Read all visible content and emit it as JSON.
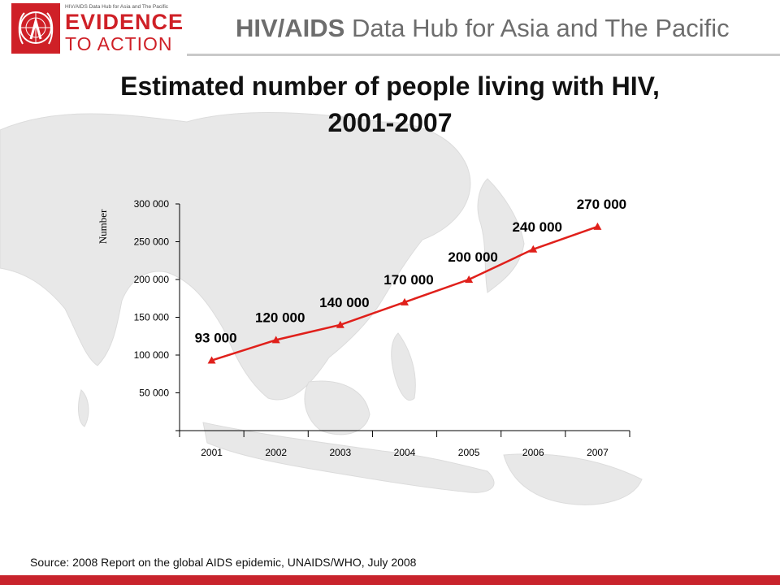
{
  "header": {
    "logo_small": "HIV/AIDS Data Hub for Asia and The Pacific",
    "logo_line1": "EVIDENCE",
    "logo_line2": "TO ACTION",
    "title_bold": "HIV/AIDS",
    "title_rest": " Data Hub for Asia and The Pacific"
  },
  "source": "Source: 2008 Report on the global AIDS epidemic, UNAIDS/WHO, July 2008",
  "colors": {
    "brand_red": "#cf2027",
    "series_line": "#e0201b",
    "map_land": "#e6e6e6",
    "header_text": "#6d6d6d"
  },
  "chart_data": {
    "type": "line",
    "title_line1": "Estimated number of people living with HIV,",
    "title_line2": "2001-2007",
    "ylabel": "Number",
    "xlabel": "",
    "categories": [
      "2001",
      "2002",
      "2003",
      "2004",
      "2005",
      "2006",
      "2007"
    ],
    "series": [
      {
        "values": [
          93000,
          120000,
          140000,
          170000,
          200000,
          240000,
          270000
        ],
        "data_labels": [
          "93 000",
          "120 000",
          "140 000",
          "170 000",
          "200 000",
          "240 000",
          "270 000"
        ]
      }
    ],
    "ylim": [
      0,
      300000
    ],
    "yticks": [
      0,
      50000,
      100000,
      150000,
      200000,
      250000,
      300000
    ],
    "ytick_labels": [
      "",
      "50 000",
      "100 000",
      "150 000",
      "200 000",
      "250 000",
      "300 000"
    ],
    "marker": "triangle",
    "grid": false,
    "legend": "none"
  }
}
